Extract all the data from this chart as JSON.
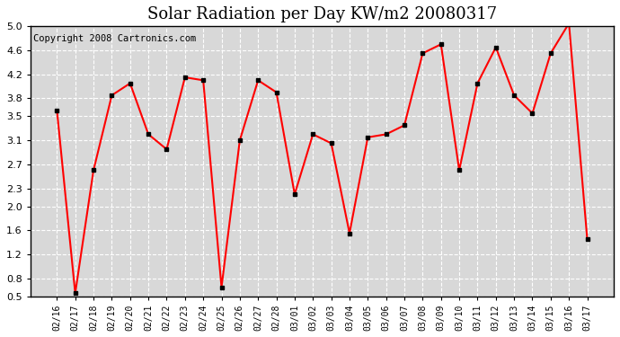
{
  "title": "Solar Radiation per Day KW/m2 20080317",
  "copyright": "Copyright 2008 Cartronics.com",
  "dates": [
    "02/16",
    "02/17",
    "02/18",
    "02/19",
    "02/20",
    "02/21",
    "02/22",
    "02/23",
    "02/24",
    "02/25",
    "02/26",
    "02/27",
    "02/28",
    "03/01",
    "03/02",
    "03/03",
    "03/04",
    "03/05",
    "03/06",
    "03/07",
    "03/08",
    "03/09",
    "03/10",
    "03/11",
    "03/12",
    "03/13",
    "03/14",
    "03/15",
    "03/16",
    "03/17"
  ],
  "values": [
    3.6,
    0.55,
    2.6,
    3.85,
    4.05,
    3.2,
    2.95,
    4.15,
    4.1,
    0.65,
    3.1,
    4.1,
    3.9,
    2.2,
    3.2,
    3.05,
    1.55,
    3.15,
    3.2,
    3.35,
    4.55,
    4.7,
    2.6,
    4.05,
    4.65,
    3.85,
    3.55,
    4.55,
    5.05,
    1.45
  ],
  "line_color": "#ff0000",
  "marker_color": "#000000",
  "bg_color": "#ffffff",
  "plot_bg_color": "#d8d8d8",
  "grid_color": "#ffffff",
  "ylim": [
    0.5,
    5.0
  ],
  "yticks": [
    0.5,
    0.8,
    1.2,
    1.6,
    2.0,
    2.3,
    2.7,
    3.1,
    3.5,
    3.8,
    4.2,
    4.6,
    5.0
  ],
  "title_fontsize": 13,
  "copyright_fontsize": 7.5
}
